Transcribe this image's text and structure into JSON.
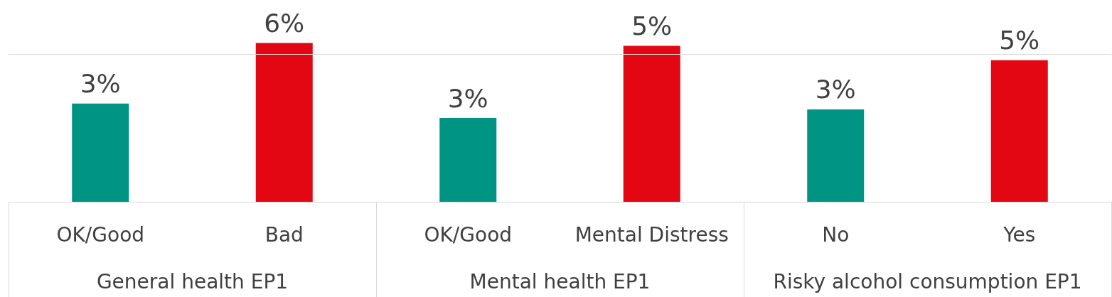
{
  "chart_data": {
    "type": "bar",
    "categories": [
      "OK/Good",
      "Bad",
      "OK/Good",
      "Mental Distress",
      "No",
      "Yes"
    ],
    "values": [
      3.4,
      5.5,
      2.9,
      5.4,
      3.2,
      4.9
    ],
    "colors": [
      "#009485",
      "#e30613",
      "#009485",
      "#e30613",
      "#009485",
      "#e30613"
    ],
    "value_labels": [
      "3%",
      "6%",
      "3%",
      "5%",
      "3%",
      "5%"
    ],
    "annotations": [
      "General health EP1",
      "Mental health EP1",
      "Risky alcohol consumption EP1"
    ],
    "ref_lines": [
      {
        "axis": "y",
        "value": 5.1,
        "color": "#d9d9d9"
      }
    ],
    "tick_labels": "x"
  }
}
